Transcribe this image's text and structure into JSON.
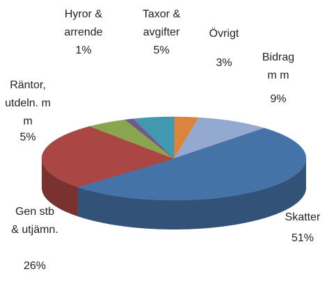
{
  "chart_data": {
    "type": "pie",
    "categories": [
      "Övrigt",
      "Bidrag m m",
      "Skatter",
      "Gen stb & utjämn.",
      "Räntor, utdeln. m m",
      "Hyror & arrende",
      "Taxor & avgifter"
    ],
    "values": [
      3,
      9,
      51,
      26,
      5,
      1,
      5
    ],
    "value_labels": [
      "3%",
      "9%",
      "51%",
      "26%",
      "5%",
      "1%",
      "5%"
    ],
    "colors": [
      "#db843d",
      "#93a9cf",
      "#4572a7",
      "#aa4643",
      "#89a54e",
      "#71588f",
      "#4198af"
    ]
  }
}
